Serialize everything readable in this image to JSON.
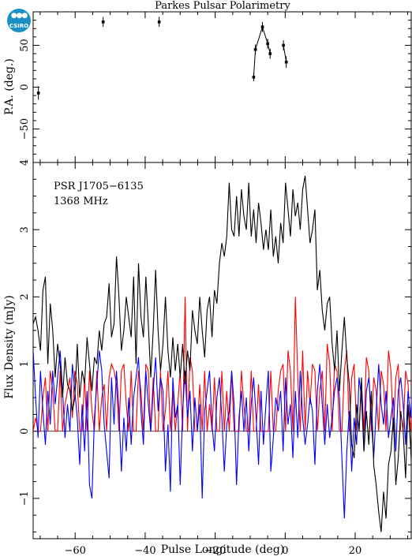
{
  "logo": {
    "text": "CSIRO",
    "color": "#1a8fc6"
  },
  "chart_data": [
    {
      "panel": "top",
      "type": "scatter",
      "title": "Parkes Pulsar Polarimetry",
      "ylabel": "P.A. (deg.)",
      "xlim": [
        -72,
        36
      ],
      "ylim": [
        -90,
        90
      ],
      "yticks": [
        -50,
        0,
        50
      ],
      "points": [
        {
          "x": -70.5,
          "y": -7,
          "err": 8
        },
        {
          "x": -52,
          "y": 78,
          "err": 6
        },
        {
          "x": -36,
          "y": 78,
          "err": 6
        },
        {
          "x": -9.0,
          "y": 12,
          "err": 5
        },
        {
          "x": -8.5,
          "y": 45,
          "err": 6
        },
        {
          "x": -6.5,
          "y": 72,
          "err": 6
        },
        {
          "x": -5.0,
          "y": 52,
          "err": 6
        },
        {
          "x": -4.3,
          "y": 40,
          "err": 6
        },
        {
          "x": -0.5,
          "y": 50,
          "err": 6
        },
        {
          "x": 0.3,
          "y": 30,
          "err": 7
        }
      ],
      "connect_groups": [
        [
          3,
          4,
          5,
          6,
          7
        ],
        [
          8,
          9
        ]
      ],
      "color": "#000000"
    },
    {
      "panel": "bottom",
      "type": "line",
      "annotation": [
        "PSR J1705−6135",
        "1368 MHz"
      ],
      "xlabel": "Pulse Longitude (deg)",
      "ylabel": "Flux Density (mJy)",
      "xlim": [
        -72,
        36
      ],
      "ylim": [
        -1.6,
        4
      ],
      "xticks": [
        -60,
        -40,
        -20,
        0,
        20
      ],
      "yticks": [
        -1,
        0,
        1,
        2,
        3,
        4
      ],
      "x_start": -72,
      "x_step": 0.7,
      "series": [
        {
          "color": "#000000",
          "values": [
            1.6,
            1.7,
            1.5,
            1.2,
            2.1,
            2.3,
            1.0,
            1.9,
            1.5,
            0.8,
            1.3,
            1.0,
            0.5,
            1.1,
            0.7,
            0.6,
            0.3,
            0.5,
            1.3,
            0.5,
            0.9,
            0.7,
            1.4,
            1.0,
            0.6,
            1.1,
            1.0,
            1.5,
            1.2,
            1.6,
            1.7,
            2.2,
            1.4,
            1.6,
            2.6,
            2.0,
            1.2,
            1.5,
            2.0,
            1.7,
            1.4,
            2.3,
            1.0,
            2.5,
            1.7,
            1.4,
            2.3,
            1.6,
            0.8,
            1.5,
            2.4,
            1.5,
            0.9,
            1.3,
            2.0,
            1.2,
            0.8,
            1.4,
            0.9,
            1.3,
            0.8,
            1.3,
            0.7,
            1.2,
            0.9,
            1.8,
            1.5,
            1.3,
            2.0,
            1.5,
            1.1,
            1.8,
            2.0,
            1.4,
            2.1,
            1.9,
            2.5,
            2.8,
            2.6,
            2.9,
            3.7,
            3.0,
            2.9,
            3.5,
            2.9,
            3.6,
            3.2,
            3.0,
            3.7,
            2.9,
            3.3,
            2.8,
            3.4,
            3.1,
            2.7,
            3.0,
            2.7,
            3.3,
            2.6,
            2.9,
            2.5,
            3.1,
            2.8,
            3.7,
            3.3,
            2.9,
            3.6,
            3.2,
            3.4,
            3.0,
            3.6,
            3.8,
            3.3,
            2.8,
            3.0,
            3.3,
            2.1,
            2.4,
            1.8,
            1.5,
            1.9,
            2.0,
            1.3,
            0.9,
            1.5,
            0.6,
            1.2,
            1.7,
            1.1,
            0.7,
            -0.2,
            -0.4,
            0.4,
            0.0,
            0.8,
            -0.3,
            0.3,
            -0.2,
            0.6,
            -0.5,
            -0.8,
            -1.2,
            -1.5,
            -0.9,
            -1.3,
            -0.5,
            -0.3,
            0.2,
            -0.8,
            -0.4,
            0.3,
            0.0,
            -0.7,
            0.4,
            -0.2,
            -1.0,
            0.2,
            -0.6,
            0.3,
            -1.2,
            -0.3,
            -0.5,
            0.5,
            -1.6,
            0.2,
            -0.4,
            0.3,
            -0.7,
            -0.1,
            -0.9
          ]
        },
        {
          "color": "#ff0000",
          "values": [
            0.0,
            0.2,
            0.0,
            0.0,
            0.5,
            0.8,
            0.0,
            0.9,
            0.6,
            0.0,
            0.0,
            0.9,
            0.0,
            0.4,
            0.6,
            0.8,
            0.2,
            0.9,
            0.7,
            0.0,
            0.0,
            0.8,
            0.0,
            0.9,
            0.3,
            0.0,
            0.9,
            0.0,
            0.5,
            0.7,
            0.0,
            0.8,
            1.0,
            0.9,
            0.7,
            0.0,
            0.9,
            1.0,
            0.4,
            0.0,
            0.9,
            0.0,
            0.0,
            0.9,
            0.6,
            0.0,
            1.0,
            0.9,
            0.0,
            0.8,
            0.0,
            0.0,
            0.9,
            0.0,
            0.3,
            0.9,
            0.0,
            0.6,
            0.0,
            0.4,
            0.9,
            0.0,
            2.0,
            0.0,
            1.1,
            0.9,
            0.0,
            0.0,
            0.7,
            0.0,
            0.9,
            0.0,
            0.4,
            0.0,
            0.8,
            0.0,
            0.0,
            0.9,
            0.0,
            0.6,
            0.0,
            0.9,
            0.0,
            0.0,
            0.0,
            0.9,
            0.4,
            0.0,
            0.0,
            0.9,
            0.0,
            0.0,
            0.7,
            0.0,
            0.0,
            0.0,
            0.0,
            0.9,
            0.0,
            0.0,
            0.6,
            0.9,
            1.0,
            0.0,
            1.2,
            0.9,
            0.0,
            2.0,
            0.8,
            0.0,
            1.2,
            0.0,
            0.9,
            0.4,
            1.0,
            0.9,
            0.0,
            0.6,
            0.9,
            0.0,
            1.3,
            1.0,
            0.0,
            1.0,
            0.9,
            0.0,
            0.0,
            0.9,
            1.2,
            0.0,
            0.8,
            1.0,
            0.0,
            0.0,
            0.7,
            0.0,
            1.1,
            0.9,
            0.0,
            0.8,
            0.6,
            0.0,
            0.9,
            0.7,
            0.0,
            1.2,
            0.9,
            0.0,
            0.8,
            1.0,
            0.0,
            0.0,
            0.9,
            0.7,
            0.0,
            0.6,
            0.0,
            0.9,
            1.0,
            0.0,
            0.8,
            0.0,
            0.9,
            0.6,
            0.0,
            0.9,
            0.0,
            0.8
          ]
        },
        {
          "color": "#0000ff",
          "values": [
            1.2,
            0.5,
            -0.1,
            0.9,
            0.3,
            -0.2,
            0.6,
            0.1,
            0.9,
            0.4,
            0.8,
            1.2,
            0.6,
            -0.1,
            0.4,
            0.0,
            1.0,
            0.6,
            0.2,
            -0.5,
            0.4,
            -0.3,
            0.6,
            -0.8,
            -1.0,
            0.2,
            0.7,
            1.2,
            0.9,
            0.1,
            -0.3,
            -0.7,
            0.8,
            0.1,
            0.9,
            0.3,
            -0.6,
            0.2,
            -0.3,
            0.5,
            -0.2,
            0.5,
            0.8,
            1.1,
            0.3,
            -0.2,
            0.9,
            0.4,
            0.0,
            0.6,
            1.1,
            0.3,
            0.8,
            0.6,
            -0.6,
            0.1,
            -0.9,
            0.8,
            0.2,
            0.4,
            -0.8,
            0.3,
            0.9,
            0.2,
            0.6,
            -0.3,
            0.5,
            0.0,
            0.4,
            -1.0,
            0.3,
            0.6,
            0.9,
            0.1,
            -0.3,
            0.5,
            0.8,
            0.2,
            -0.6,
            0.1,
            0.3,
            0.9,
            0.4,
            -0.8,
            0.2,
            0.6,
            0.0,
            0.5,
            -0.3,
            0.4,
            0.8,
            0.2,
            -0.5,
            0.6,
            -0.2,
            0.4,
            0.9,
            -0.6,
            -0.1,
            0.5,
            0.3,
            0.6,
            -0.3,
            0.8,
            0.1,
            0.4,
            -0.4,
            0.6,
            -0.1,
            0.9,
            0.2,
            -0.2,
            0.1,
            0.5,
            0.3,
            -0.5,
            0.6,
            1.0,
            0.4,
            -0.2,
            0.4,
            -0.1,
            0.2,
            0.6,
            0.8,
            0.5,
            -0.4,
            -1.3,
            -0.3,
            0.3,
            -0.6,
            0.2,
            -0.2,
            0.8,
            0.5,
            -0.3,
            0.6,
            0.8,
            0.2,
            -0.4,
            0.3,
            1.0,
            0.4,
            0.1,
            0.6,
            -0.1,
            0.2,
            0.5,
            -0.3,
            0.6,
            0.8,
            0.4,
            -0.2,
            0.6,
            0.2,
            1.0,
            0.5,
            0.3,
            0.9,
            0.5,
            0.8,
            0.3,
            1.0,
            0.5,
            0.3,
            0.7,
            0.1,
            -0.2,
            1.0,
            0.8
          ]
        }
      ]
    }
  ]
}
